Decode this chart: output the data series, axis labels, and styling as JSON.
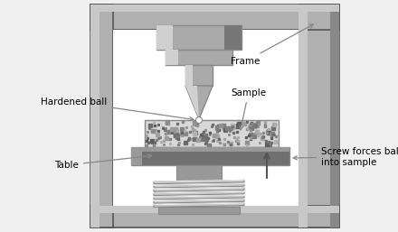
{
  "bg_color": "#f0f0f0",
  "frame_fill": "#b0b0b0",
  "frame_edge": "#555555",
  "frame_inner_fill": "#c8c8c8",
  "indenter_dark": "#888888",
  "indenter_mid": "#aaaaaa",
  "indenter_light": "#d0d0d0",
  "sample_fill": "#d0d0d0",
  "sample_noise": "#aaaaaa",
  "table_dark": "#707070",
  "table_mid": "#999999",
  "table_light": "#cccccc",
  "spring_fill": "#cccccc",
  "spring_dark": "#888888",
  "spring_light": "#eeeeee",
  "arrow_color": "#888888",
  "text_color": "#000000",
  "labels": {
    "hardened_ball": "Hardened ball",
    "frame": "Frame",
    "sample": "Sample",
    "table": "Table",
    "screw": "Screw forces ball\ninto sample"
  },
  "figsize": [
    4.4,
    2.57
  ],
  "dpi": 100
}
